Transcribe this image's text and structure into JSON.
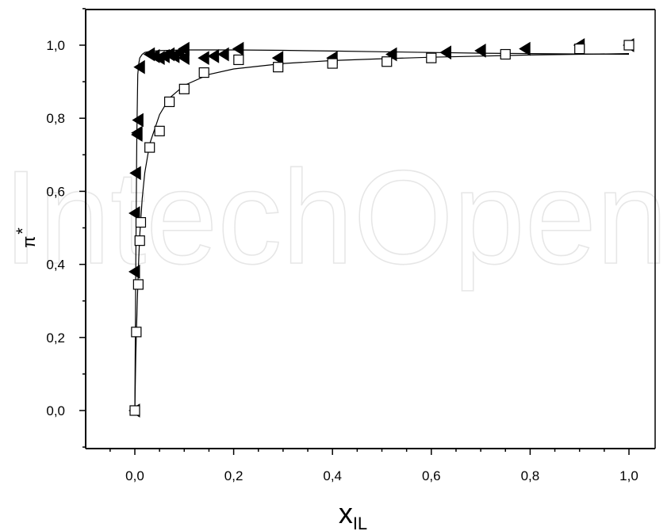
{
  "watermark": "IntechOpen",
  "chart_data": {
    "type": "scatter",
    "title": "",
    "xlabel": "x",
    "xlabel_subscript": "IL",
    "ylabel": "π",
    "ylabel_superscript": "*",
    "xlim": [
      -0.1,
      1.05
    ],
    "ylim": [
      -0.1,
      1.1
    ],
    "xticks": [
      0.0,
      0.2,
      0.4,
      0.6,
      0.8,
      1.0
    ],
    "xtick_labels": [
      "0,0",
      "0,2",
      "0,4",
      "0,6",
      "0,8",
      "1,0"
    ],
    "yticks": [
      0.0,
      0.2,
      0.4,
      0.6,
      0.8,
      1.0
    ],
    "ytick_labels": [
      "0,0",
      "0,2",
      "0,4",
      "0,6",
      "0,8",
      "1,0"
    ],
    "grid": false,
    "legend": "none",
    "series": [
      {
        "marker": "filled-left-triangle",
        "color": "#000000",
        "x": [
          0.0,
          0.0,
          0.0,
          0.002,
          0.005,
          0.005,
          0.007,
          0.01,
          0.03,
          0.04,
          0.05,
          0.06,
          0.07,
          0.08,
          0.09,
          0.1,
          0.1,
          0.14,
          0.16,
          0.18,
          0.21,
          0.29,
          0.4,
          0.52,
          0.63,
          0.7,
          0.79,
          0.9,
          1.0
        ],
        "y": [
          0.0,
          0.38,
          0.54,
          0.65,
          0.755,
          0.76,
          0.795,
          0.94,
          0.975,
          0.97,
          0.965,
          0.97,
          0.975,
          0.97,
          0.98,
          0.965,
          0.99,
          0.965,
          0.97,
          0.975,
          0.99,
          0.965,
          0.965,
          0.975,
          0.98,
          0.985,
          0.99,
          1.0,
          1.0
        ]
      },
      {
        "marker": "open-square",
        "color": "#000000",
        "x": [
          0.0,
          0.003,
          0.007,
          0.01,
          0.012,
          0.03,
          0.05,
          0.07,
          0.1,
          0.14,
          0.21,
          0.29,
          0.4,
          0.51,
          0.6,
          0.75,
          0.9,
          1.0
        ],
        "y": [
          0.0,
          0.215,
          0.345,
          0.465,
          0.515,
          0.72,
          0.765,
          0.845,
          0.88,
          0.925,
          0.96,
          0.94,
          0.95,
          0.955,
          0.965,
          0.975,
          0.99,
          1.0
        ]
      }
    ],
    "fit_curves": [
      {
        "for_series": 0,
        "x": [
          0.0,
          0.002,
          0.004,
          0.006,
          0.008,
          0.01,
          0.015,
          0.02,
          0.03,
          0.05,
          0.1,
          0.2,
          0.3,
          0.4,
          0.5,
          0.6,
          0.7,
          0.8,
          0.9,
          1.0
        ],
        "y": [
          0.0,
          0.4,
          0.75,
          0.92,
          0.95,
          0.965,
          0.975,
          0.98,
          0.983,
          0.985,
          0.987,
          0.987,
          0.986,
          0.984,
          0.982,
          0.98,
          0.978,
          0.977,
          0.976,
          0.975
        ]
      },
      {
        "for_series": 1,
        "x": [
          0.0,
          0.002,
          0.005,
          0.008,
          0.01,
          0.015,
          0.02,
          0.03,
          0.05,
          0.07,
          0.1,
          0.15,
          0.2,
          0.3,
          0.4,
          0.5,
          0.6,
          0.7,
          0.8,
          0.9,
          1.0
        ],
        "y": [
          0.0,
          0.15,
          0.3,
          0.42,
          0.48,
          0.58,
          0.65,
          0.73,
          0.81,
          0.855,
          0.89,
          0.92,
          0.935,
          0.95,
          0.958,
          0.963,
          0.967,
          0.97,
          0.973,
          0.975,
          0.977
        ]
      }
    ]
  }
}
